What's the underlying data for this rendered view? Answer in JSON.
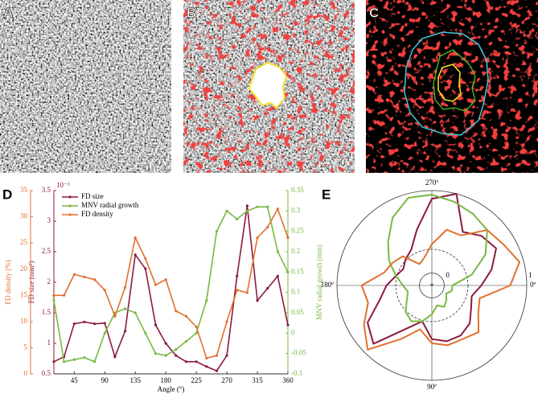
{
  "panel_labels": [
    "A",
    "B",
    "C",
    "D",
    "E"
  ],
  "chart_data": [
    {
      "type": "line",
      "xlabel": "Angle (°)",
      "x": [
        15,
        30,
        45,
        60,
        75,
        90,
        105,
        120,
        135,
        150,
        165,
        180,
        195,
        210,
        225,
        240,
        255,
        270,
        285,
        300,
        315,
        330,
        345,
        360
      ],
      "xlim": [
        15,
        360
      ],
      "xticks": [
        45,
        90,
        135,
        180,
        225,
        270,
        315,
        360
      ],
      "ylabel": "FD size (mm²)",
      "y_exponent_label": "10⁻³",
      "ylim": [
        0.5,
        3.5
      ],
      "yticks": [
        0.5,
        1,
        1.5,
        2,
        2.5,
        3,
        3.5
      ],
      "y2label": "MNV radial growth (mm)",
      "y2lim": [
        -0.1,
        0.35
      ],
      "y2ticks": [
        -0.1,
        -0.05,
        0,
        0.05,
        0.1,
        0.15,
        0.2,
        0.25,
        0.3,
        0.35
      ],
      "y3label": "FD density (%)",
      "y3lim": [
        0,
        35
      ],
      "y3ticks": [
        0,
        5,
        10,
        15,
        20,
        25,
        30,
        35
      ],
      "legend": "upper left",
      "series": [
        {
          "name": "FD size",
          "color": "#8b1a3e",
          "axis": "y",
          "values": [
            0.7,
            0.78,
            1.32,
            1.35,
            1.32,
            1.33,
            0.78,
            1.2,
            2.45,
            2.22,
            1.3,
            1.0,
            0.8,
            0.7,
            0.7,
            0.62,
            0.55,
            0.8,
            2.1,
            3.25,
            1.7,
            1.9,
            2.1,
            1.3
          ]
        },
        {
          "name": "MNV radial growth",
          "color": "#78b843",
          "axis": "y2",
          "values": [
            0.08,
            -0.07,
            -0.065,
            -0.06,
            -0.07,
            0.0,
            0.05,
            0.06,
            0.05,
            0.0,
            -0.05,
            -0.055,
            -0.04,
            -0.02,
            0.0,
            0.08,
            0.25,
            0.3,
            0.28,
            0.3,
            0.31,
            0.31,
            0.2,
            0.15
          ]
        },
        {
          "name": "FD density",
          "color": "#e0702f",
          "axis": "y3",
          "values": [
            15,
            15,
            19,
            18.5,
            18,
            16,
            11,
            16.5,
            26,
            22,
            17,
            18,
            12,
            11,
            9,
            3,
            3.5,
            10,
            16,
            15.5,
            26,
            28,
            31.5,
            26
          ]
        }
      ]
    },
    {
      "type": "polar",
      "center_label": "*",
      "theta": [
        15,
        30,
        45,
        60,
        75,
        90,
        105,
        120,
        135,
        150,
        165,
        180,
        195,
        210,
        225,
        240,
        255,
        270,
        285,
        300,
        315,
        330,
        345,
        360
      ],
      "thetaticks": [
        {
          "value": 0,
          "label": "0º"
        },
        {
          "value": 90,
          "label": "90º"
        },
        {
          "value": 180,
          "label": "180º"
        },
        {
          "value": 270,
          "label": "270º"
        }
      ],
      "rlim": [
        -0.15,
        1
      ],
      "rticks": [
        0,
        1
      ],
      "series": [
        {
          "name": "FD size",
          "color": "#8b1a3e",
          "values": [
            0.35,
            0.4,
            0.5,
            0.55,
            0.55,
            0.5,
            0.3,
            0.45,
            0.85,
            0.75,
            0.5,
            0.4,
            0.3,
            0.25,
            0.3,
            0.35,
            0.55,
            0.9,
            1.0,
            0.6,
            0.7,
            0.75,
            0.6,
            0.45
          ]
        },
        {
          "name": "MNV radial growth",
          "color": "#78b843",
          "values": [
            0.1,
            0.05,
            0.1,
            0.15,
            0.1,
            0.2,
            0.3,
            0.35,
            0.3,
            0.2,
            0.15,
            0.2,
            0.3,
            0.45,
            0.6,
            0.8,
            0.95,
            0.95,
            0.9,
            0.85,
            0.8,
            0.6,
            0.35,
            0.1
          ]
        },
        {
          "name": "FD density",
          "color": "#e0702f",
          "values": [
            0.45,
            0.5,
            0.65,
            0.6,
            0.6,
            0.55,
            0.4,
            0.6,
            0.95,
            0.8,
            0.65,
            0.7,
            0.45,
            0.4,
            0.35,
            0.15,
            0.2,
            0.35,
            0.55,
            0.55,
            0.8,
            0.85,
            0.95,
            0.8
          ]
        }
      ]
    }
  ]
}
